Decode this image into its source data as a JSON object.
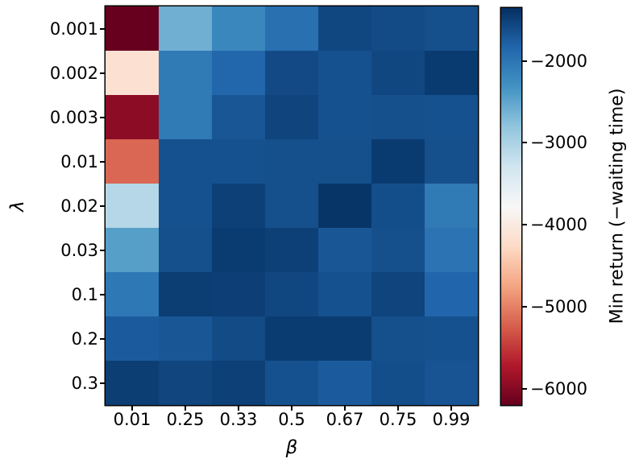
{
  "figure": {
    "background": "#ffffff",
    "text_color": "#000000"
  },
  "chart_data": {
    "type": "heatmap",
    "title": "",
    "xlabel": "β",
    "ylabel": "λ",
    "x_categories": [
      "0.01",
      "0.25",
      "0.33",
      "0.5",
      "0.67",
      "0.75",
      "0.99"
    ],
    "y_categories": [
      "0.001",
      "0.002",
      "0.003",
      "0.01",
      "0.02",
      "0.03",
      "0.1",
      "0.2",
      "0.3"
    ],
    "values": [
      [
        -6200,
        -2600,
        -2200,
        -1950,
        -1560,
        -1600,
        -1640
      ],
      [
        -4150,
        -2050,
        -1850,
        -1590,
        -1650,
        -1560,
        -1450
      ],
      [
        -5960,
        -2050,
        -1700,
        -1530,
        -1650,
        -1630,
        -1650
      ],
      [
        -5180,
        -1650,
        -1650,
        -1640,
        -1640,
        -1450,
        -1630
      ],
      [
        -3080,
        -1650,
        -1500,
        -1630,
        -1400,
        -1620,
        -2050
      ],
      [
        -2440,
        -1630,
        -1460,
        -1500,
        -1700,
        -1640,
        -1980
      ],
      [
        -2030,
        -1470,
        -1490,
        -1560,
        -1650,
        -1530,
        -1840
      ],
      [
        -1740,
        -1700,
        -1600,
        -1460,
        -1460,
        -1640,
        -1650
      ],
      [
        -1480,
        -1540,
        -1500,
        -1650,
        -1740,
        -1620,
        -1680
      ]
    ],
    "colormap": "RdBu",
    "vmin": -6200,
    "vmax": -1355,
    "grid": false,
    "legend": false,
    "colorbar": {
      "label": "Min return (−waiting time)",
      "ticks": [
        -2000,
        -3000,
        -4000,
        -5000,
        -6000
      ],
      "tick_labels": [
        "−2000",
        "−3000",
        "−4000",
        "−5000",
        "−6000"
      ]
    }
  }
}
